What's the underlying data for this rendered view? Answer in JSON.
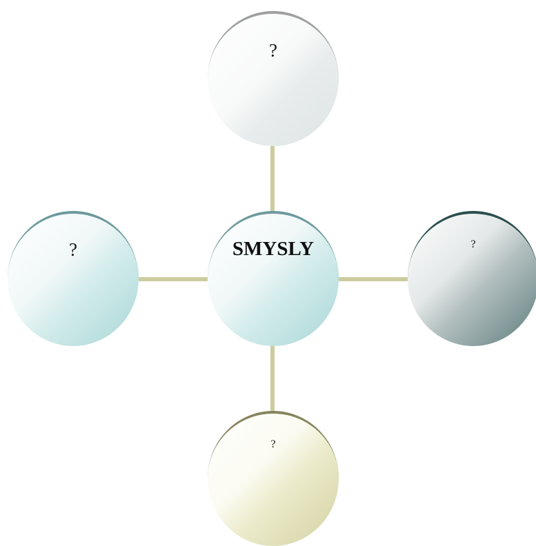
{
  "diagram": {
    "center": {
      "label": "SMYSLY",
      "color": "#a9d6d6"
    },
    "nodes": {
      "top": {
        "label": "?",
        "color": "#dee4e4"
      },
      "left": {
        "label": "?",
        "color": "#a9d6d6"
      },
      "right": {
        "label": "?",
        "color": "#5e7c7c"
      },
      "bottom": {
        "label": "?",
        "color": "#d2d1a2"
      }
    },
    "connector_color": "#cccc9e"
  }
}
